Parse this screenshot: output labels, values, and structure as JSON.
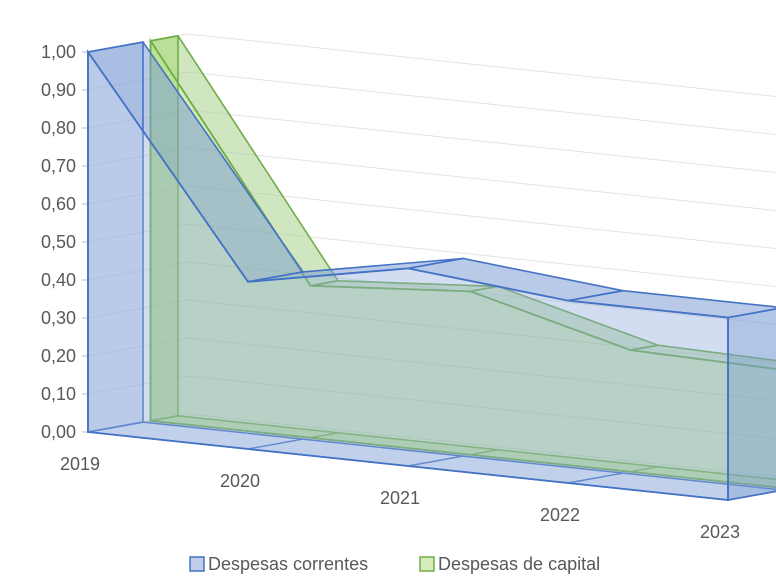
{
  "chart_data": {
    "type": "area",
    "style": "3d-area",
    "categories": [
      "2019",
      "2020",
      "2021",
      "2022",
      "2023"
    ],
    "series": [
      {
        "name": "Despesas correntes",
        "values": [
          1.0,
          0.44,
          0.52,
          0.48,
          0.48
        ],
        "color": "#4472c4"
      },
      {
        "name": "Despesas de capital",
        "values": [
          1.0,
          0.4,
          0.43,
          0.32,
          0.31
        ],
        "color": "#70ad47"
      }
    ],
    "ylim": [
      0,
      1
    ],
    "yticks": [
      "0,00",
      "0,10",
      "0,20",
      "0,30",
      "0,40",
      "0,50",
      "0,60",
      "0,70",
      "0,80",
      "0,90",
      "1,00"
    ],
    "grid": true,
    "legend_position": "bottom"
  }
}
